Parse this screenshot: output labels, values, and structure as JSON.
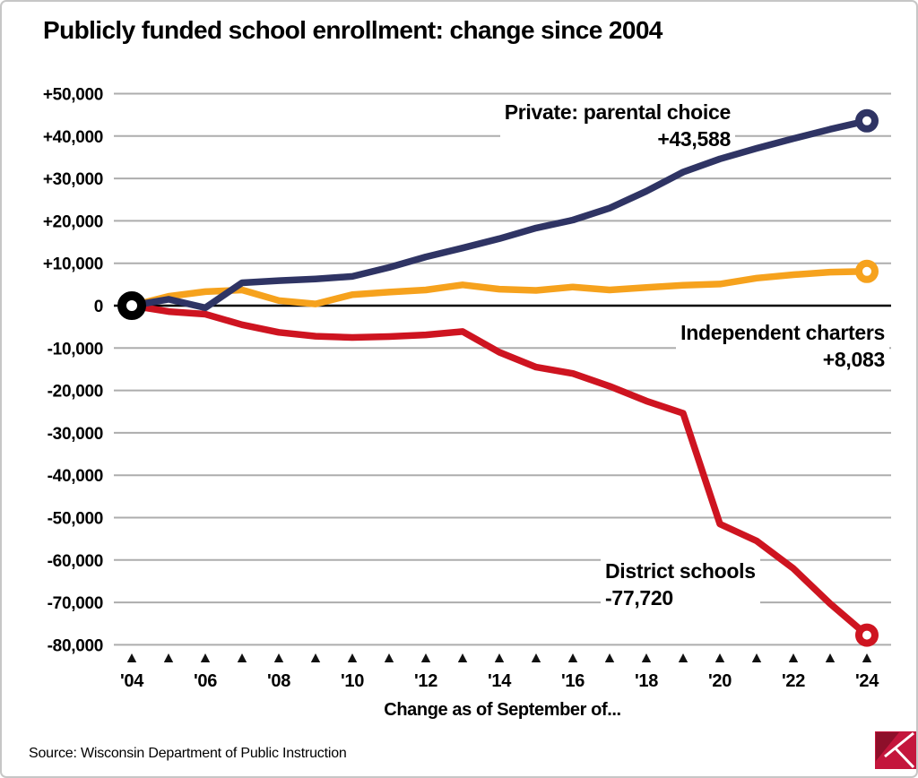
{
  "title": "Publicly funded school enrollment: change since 2004",
  "source": "Source: Wisconsin Department of Public Instruction",
  "logo": {
    "name": "journal-sentinel-logo",
    "primary": "#c4163c",
    "dark": "#8e0f2a",
    "accent": "#ffffff"
  },
  "colors": {
    "gridline": "#adadad",
    "zero_line": "#000000",
    "tick_triangle": "#111111"
  },
  "chart_data": {
    "type": "line",
    "title": "Publicly funded school enrollment: change since 2004",
    "xlabel": "Change as of September of...",
    "ylabel": "",
    "ylim": [
      -80000,
      50000
    ],
    "ytick_step": 10000,
    "grid": true,
    "legend_position": "inline-annotations",
    "years": [
      2004,
      2005,
      2006,
      2007,
      2008,
      2009,
      2010,
      2011,
      2012,
      2013,
      2014,
      2015,
      2016,
      2017,
      2018,
      2019,
      2020,
      2021,
      2022,
      2023,
      2024
    ],
    "x_tick_labels": [
      "'04",
      "'06",
      "'08",
      "'10",
      "'12",
      "'14",
      "'16",
      "'18",
      "'20",
      "'22",
      "'24"
    ],
    "y_tick_labels": [
      "+50,000",
      "+40,000",
      "+30,000",
      "+20,000",
      "+10,000",
      "0",
      "-10,000",
      "-20,000",
      "-30,000",
      "-40,000",
      "-50,000",
      "-60,000",
      "-70,000",
      "-80,000"
    ],
    "series": [
      {
        "name": "Private: parental choice",
        "value_label": "+43,588",
        "end_value": 43588,
        "color": "#2f3464",
        "values": [
          0,
          1500,
          -500,
          5400,
          5900,
          6300,
          6900,
          9000,
          11500,
          13600,
          15800,
          18300,
          20200,
          23000,
          27000,
          31500,
          34600,
          37100,
          39400,
          41600,
          43588
        ]
      },
      {
        "name": "Independent charters",
        "value_label": "+8,083",
        "end_value": 8083,
        "color": "#f6a21d",
        "values": [
          0,
          2200,
          3300,
          3700,
          1200,
          400,
          2600,
          3200,
          3700,
          4900,
          3900,
          3600,
          4400,
          3700,
          4300,
          4800,
          5100,
          6500,
          7300,
          7900,
          8083
        ]
      },
      {
        "name": "District schools",
        "value_label": "-77,720",
        "end_value": -77720,
        "color": "#ce1420",
        "values": [
          0,
          -1400,
          -2000,
          -4500,
          -6300,
          -7200,
          -7500,
          -7300,
          -6900,
          -6100,
          -11000,
          -14500,
          -16000,
          -19000,
          -22500,
          -25400,
          -51500,
          -55500,
          -62000,
          -70300,
          -77720
        ]
      }
    ],
    "start_marker": {
      "year": 2004,
      "value": 0,
      "color": "#000000"
    }
  }
}
